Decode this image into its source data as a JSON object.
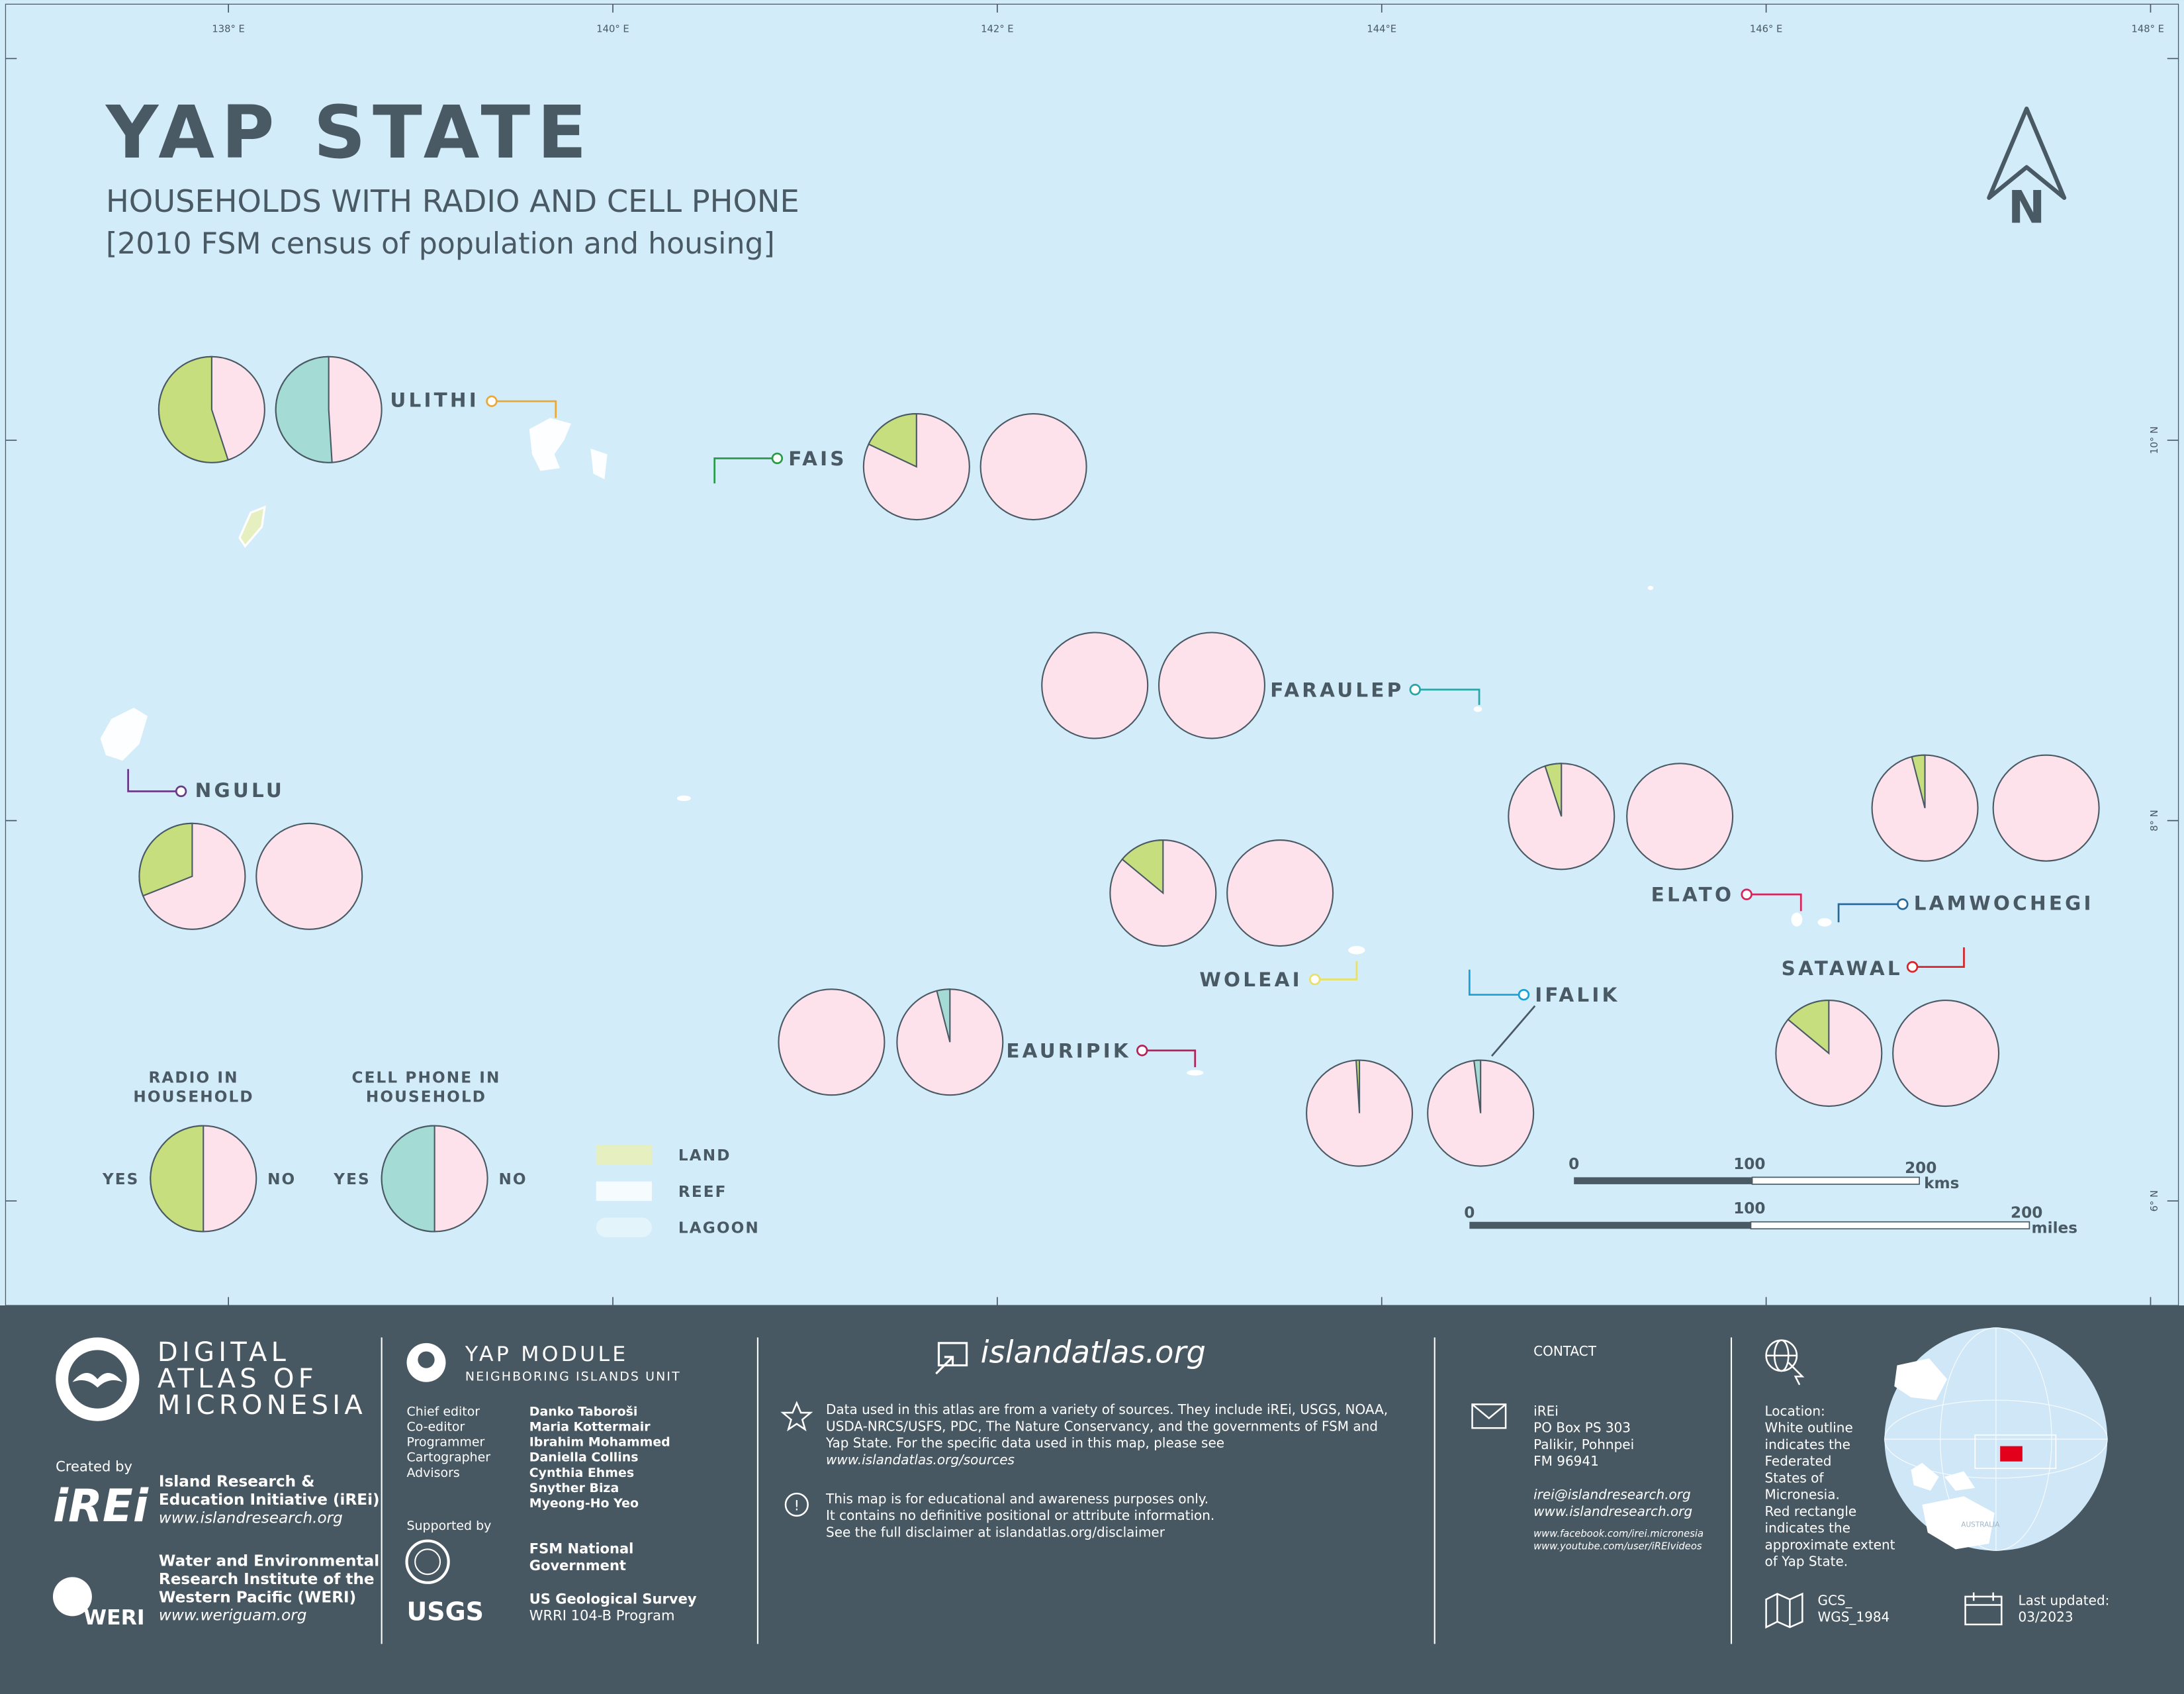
{
  "title": "YAP STATE",
  "subtitle": "HOUSEHOLDS WITH RADIO AND CELL PHONE",
  "subtitle2": "[2010 FSM census of population and housing]",
  "north_label": "N",
  "longitudes": [
    "138° E",
    "140° E",
    "142° E",
    "144°E",
    "146° E",
    "148° E"
  ],
  "latitudes": [
    "10° N",
    "8° N",
    "6° N"
  ],
  "colors": {
    "ocean": "#d3ecf9",
    "radio_yes": "#c6de7d",
    "cell_yes": "#a4dbd4",
    "no": "#fde2ec",
    "text_dark": "#4a5a64",
    "footer_bg": "#485862",
    "land": "#e6efbf",
    "reef": "#ffffff"
  },
  "islands": [
    {
      "name": "ULITHI",
      "radio_yes_fraction": 0.55,
      "cell_yes_fraction": 0.51,
      "leader_color": "#e8a93a"
    },
    {
      "name": "FAIS",
      "radio_yes_fraction": 0.18,
      "cell_yes_fraction": 0.0,
      "leader_color": "#2a9a4a"
    },
    {
      "name": "FARAULEP",
      "radio_yes_fraction": 0.0,
      "cell_yes_fraction": 0.0,
      "leader_color": "#2aa6a6"
    },
    {
      "name": "NGULU",
      "radio_yes_fraction": 0.31,
      "cell_yes_fraction": 0.0,
      "leader_color": "#6a3a8a"
    },
    {
      "name": "WOLEAI",
      "radio_yes_fraction": 0.14,
      "cell_yes_fraction": 0.0,
      "leader_color": "#e8e06a"
    },
    {
      "name": "EAURIPIK",
      "radio_yes_fraction": 0.0,
      "cell_yes_fraction": 0.04,
      "leader_color": "#b0245a"
    },
    {
      "name": "IFALIK",
      "radio_yes_fraction": 0.01,
      "cell_yes_fraction": 0.02,
      "leader_color": "#1aa0d8"
    },
    {
      "name": "ELATO",
      "radio_yes_fraction": 0.05,
      "cell_yes_fraction": 0.0,
      "leader_color": "#d8245a"
    },
    {
      "name": "LAMWOCHEGI",
      "radio_yes_fraction": 0.04,
      "cell_yes_fraction": 0.0,
      "leader_color": "#2a6a9a"
    },
    {
      "name": "SATAWAL",
      "radio_yes_fraction": 0.14,
      "cell_yes_fraction": 0.0,
      "leader_color": "#d8242a"
    }
  ],
  "legend": {
    "radio_title_1": "RADIO IN",
    "radio_title_2": "HOUSEHOLD",
    "cell_title_1": "CELL PHONE IN",
    "cell_title_2": "HOUSEHOLD",
    "yes": "YES",
    "no": "NO",
    "land": "LAND",
    "reef": "REEF",
    "lagoon": "LAGOON"
  },
  "scale": {
    "km_ticks": [
      "0",
      "100",
      "200"
    ],
    "km_unit": "kms",
    "mi_ticks": [
      "0",
      "100",
      "200"
    ],
    "mi_unit": "miles"
  },
  "footer": {
    "atlas_line1": "DIGITAL",
    "atlas_line2": "ATLAS OF",
    "atlas_line3": "MICRONESIA",
    "created_by": "Created by",
    "irei_logo": "iREi",
    "irei_name1": "Island Research &",
    "irei_name2": "Education Initiative (iREi)",
    "irei_url": "www.islandresearch.org",
    "weri_logo": "WERI",
    "weri_name1": "Water and Environmental",
    "weri_name2": "Research Institute of the",
    "weri_name3": "Western Pacific (WERI)",
    "weri_url": "www.weriguam.org",
    "module_title": "YAP MODULE",
    "module_sub": "NEIGHBORING ISLANDS UNIT",
    "roles": [
      "Chief editor",
      "Co-editor",
      "Programmer",
      "Cartographer",
      "Advisors"
    ],
    "names": [
      "Danko Taboroši",
      "Maria Kottermair",
      "Ibrahim Mohammed",
      "Daniella Collins",
      "Cynthia Ehmes",
      "Snyther Biza",
      "Myeong-Ho Yeo"
    ],
    "supported_by": "Supported by",
    "fsm_1": "FSM National",
    "fsm_2": "Government",
    "usgs_logo": "USGS",
    "usgs_1": "US Geological Survey",
    "usgs_2": "WRRI 104-B Program",
    "site": "islandatlas.org",
    "data_lines": [
      "Data used in this atlas are from a variety of sources. They include iREi, USGS, NOAA,",
      "USDA-NRCS/USFS, PDC, The Nature Conservancy, and the governments of FSM and",
      "Yap State. For the specific data used in this map, please see",
      "www.islandatlas.org/sources"
    ],
    "disclaimer_lines": [
      "This map is for educational and awareness purposes only.",
      "It contains no definitive positional or attribute information.",
      "See the full disclaimer at islandatlas.org/disclaimer"
    ],
    "contact_title": "CONTACT",
    "address": [
      "iREi",
      "PO Box PS 303",
      "Palikir, Pohnpei",
      "FM 96941"
    ],
    "email": "irei@islandresearch.org",
    "web": "www.islandresearch.org",
    "facebook": "www.facebook.com/irei.micronesia",
    "youtube": "www.youtube.com/user/iREIvideos",
    "location_lines": [
      "Location:",
      "White outline",
      "indicates the",
      "Federated",
      "States of",
      "Micronesia.",
      "Red rectangle",
      "indicates the",
      "approximate extent",
      "of Yap State."
    ],
    "globe_label": "AUSTRALIA",
    "gcs_1": "GCS_",
    "gcs_2": "WGS_1984",
    "updated_1": "Last updated:",
    "updated_2": "03/2023"
  }
}
